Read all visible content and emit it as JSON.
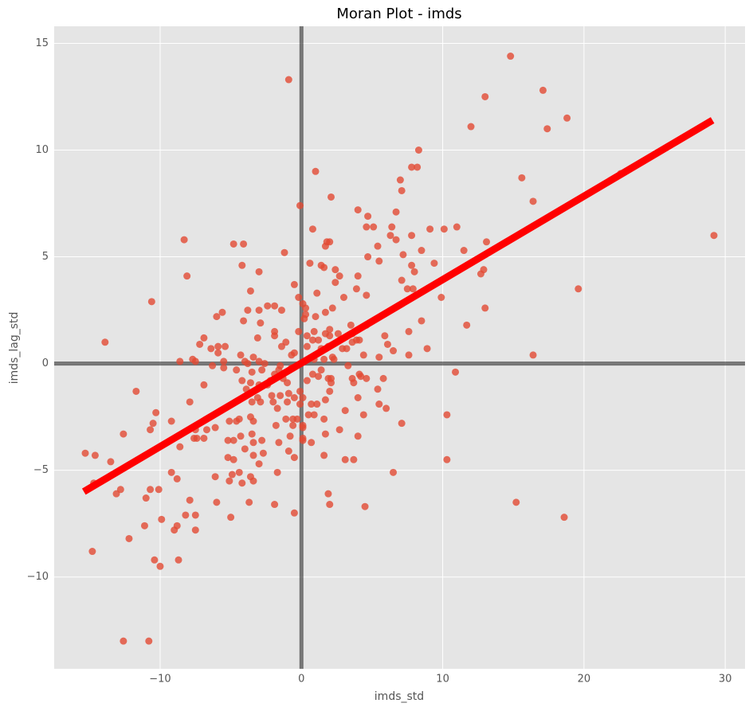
{
  "chart_data": {
    "type": "scatter",
    "title": "Moran Plot - imds",
    "x_label": "imds_std",
    "y_label": "imds_lag_std",
    "xlim": [
      -17.5,
      31.4
    ],
    "ylim": [
      -14.3,
      15.8
    ],
    "xticks": [
      {
        "value": -10,
        "label": "−10"
      },
      0,
      10,
      20,
      30
    ],
    "yticks": [
      {
        "value": -10,
        "label": "−10"
      },
      {
        "value": -5,
        "label": "−5"
      },
      0,
      5,
      10,
      15
    ],
    "grid": true,
    "hline": 0,
    "vline": 0,
    "series": [
      {
        "color": "#e24a33",
        "x": [
          14.8,
          -0.9,
          13.0,
          17.1,
          18.8,
          12.0,
          17.4,
          8.3,
          7.8,
          8.2,
          1.0,
          15.6,
          7.0,
          22.6,
          7.1,
          2.1,
          16.4,
          -0.1,
          4.0,
          4.7,
          6.7,
          29.2,
          11.0,
          6.4,
          4.6,
          5.1,
          0.8,
          9.1,
          10.1,
          7.8,
          6.3,
          -8.3,
          6.7,
          1.8,
          2.0,
          13.1,
          -4.8,
          -4.1,
          5.4,
          1.7,
          -1.2,
          11.5,
          8.5,
          7.2,
          4.7,
          0.6,
          5.5,
          9.4,
          1.4,
          7.8,
          -4.2,
          1.6,
          2.4,
          12.9,
          12.7,
          -3.0,
          8.0,
          -8.1,
          4.0,
          2.7,
          2.4,
          7.1,
          -0.5,
          7.5,
          7.9,
          19.6,
          1.1,
          -3.6,
          3.9,
          4.6,
          3.0,
          9.9,
          -0.2,
          0.1,
          -10.6,
          -2.4,
          -1.9,
          0.3,
          -3.8,
          -1.4,
          -3.0,
          2.2,
          13.0,
          -5.6,
          1.7,
          1.0,
          -6.0,
          0.3,
          0.2,
          -4.1,
          -2.9,
          8.5,
          3.5,
          11.7,
          4.6,
          2.0,
          0.9,
          -0.2,
          3.6,
          -1.9,
          7.6,
          2.6,
          1.7,
          5.9,
          0.4,
          -1.9,
          2.0,
          -13.9,
          -6.9,
          -3.1,
          0.8,
          1.2,
          4.1,
          3.9,
          3.6,
          8.9,
          -1.1,
          -7.2,
          -1.4,
          6.1,
          -5.9,
          -5.4,
          1.9,
          1.4,
          2.9,
          3.2,
          -6.4,
          0.4,
          -0.5,
          6.5,
          -5.9,
          -4.3,
          4.4,
          -3.4,
          -0.7,
          5.5,
          7.6,
          16.4,
          2.2,
          -7.7,
          -7.5,
          -8.6,
          -4.0,
          -3.0,
          0.9,
          1.6,
          2.3,
          -5.5,
          -3.8,
          -2.6,
          -1.5,
          3.3,
          -6.3,
          -5.5,
          -0.7,
          1.4,
          -4.6,
          -2.8,
          -1.6,
          10.9,
          -3.5,
          -1.9,
          0.8,
          1.2,
          4.1,
          4.2,
          -1.3,
          1.9,
          3.6,
          5.8,
          4.6,
          2.1,
          -4.2,
          -2.2,
          0.4,
          -3.6,
          -1.0,
          3.7,
          2.1,
          -3.0,
          -2.4,
          -11.7,
          -6.9,
          -3.9,
          5.4,
          -0.1,
          -0.9,
          -1.5,
          2.0,
          -2.1,
          -0.5,
          4.0,
          0.1,
          -3.1,
          1.7,
          -2.9,
          -1.0,
          -3.5,
          -2.0,
          -7.9,
          -0.1,
          0.7,
          1.1,
          5.5,
          6.0,
          3.1,
          -1.7,
          0.5,
          -10.3,
          0.9,
          4.4,
          10.3,
          -1.1,
          -0.6,
          -4.4,
          -3.6,
          1.6,
          -0.3,
          -10.5,
          -9.2,
          -5.1,
          -4.6,
          -3.4,
          0.1,
          -0.6,
          -1.8,
          0.1,
          7.1,
          -10.7,
          -7.5,
          -6.7,
          2.7,
          -6.1,
          -12.6,
          -3.5,
          -0.8,
          -4.3,
          4.0,
          1.7,
          -7.6,
          -7.4,
          -6.9,
          0.1,
          -5.2,
          -4.8,
          -2.8,
          0.1,
          0.7,
          -3.4,
          -1.6,
          -8.6,
          -4.0,
          -0.9,
          -2.7,
          -3.4,
          -15.3,
          -14.6,
          1.6,
          -5.2,
          -0.5,
          -4.8,
          3.1,
          3.7,
          10.3,
          -13.5,
          -3.0,
          -1.7,
          6.5,
          -9.2,
          -4.4,
          -4.9,
          -8.8,
          -6.1,
          -3.6,
          -5.1,
          -3.4,
          -14.7,
          -4.2,
          -10.7,
          -10.1,
          -12.8,
          -13.1,
          1.9,
          -11.0,
          -7.9,
          15.2,
          -6.0,
          -3.7,
          -1.9,
          2.0,
          4.5,
          -0.5,
          -8.2,
          -7.5,
          18.6,
          -5.0,
          -9.9,
          -11.1,
          -8.8,
          -7.5,
          -9.0,
          -12.2,
          -14.8,
          -10.4,
          -8.7,
          -10.0,
          -12.6,
          -10.8
        ],
        "values": [
          14.4,
          13.3,
          12.5,
          12.8,
          11.5,
          11.1,
          11.0,
          10.0,
          9.2,
          9.2,
          9.0,
          8.7,
          8.6,
          8.9,
          8.1,
          7.8,
          7.6,
          7.4,
          7.2,
          6.9,
          7.1,
          6.0,
          6.4,
          6.4,
          6.4,
          6.4,
          6.3,
          6.3,
          6.3,
          6.0,
          6.0,
          5.8,
          5.8,
          5.7,
          5.7,
          5.7,
          5.6,
          5.6,
          5.5,
          5.5,
          5.2,
          5.3,
          5.3,
          5.1,
          5.0,
          4.7,
          4.8,
          4.7,
          4.6,
          4.6,
          4.6,
          4.5,
          4.4,
          4.4,
          4.2,
          4.3,
          4.3,
          4.1,
          4.1,
          4.1,
          3.8,
          3.9,
          3.7,
          3.5,
          3.5,
          3.5,
          3.3,
          3.4,
          3.5,
          3.2,
          3.1,
          3.1,
          3.1,
          2.8,
          2.9,
          2.7,
          2.7,
          2.6,
          2.5,
          2.5,
          2.5,
          2.6,
          2.6,
          2.4,
          2.4,
          2.2,
          2.2,
          2.3,
          2.1,
          2.0,
          1.9,
          2.0,
          1.8,
          1.8,
          1.8,
          1.6,
          1.5,
          1.5,
          1.4,
          1.5,
          1.5,
          1.4,
          1.4,
          1.3,
          1.3,
          1.3,
          1.3,
          1.0,
          1.2,
          1.2,
          1.1,
          1.1,
          1.1,
          1.1,
          1.0,
          0.7,
          1.0,
          0.9,
          0.8,
          0.9,
          0.8,
          0.8,
          0.8,
          0.7,
          0.7,
          0.7,
          0.7,
          0.8,
          0.5,
          0.6,
          0.5,
          0.4,
          0.4,
          0.3,
          0.4,
          0.3,
          0.4,
          0.4,
          0.3,
          0.2,
          0.1,
          0.1,
          0.1,
          0.1,
          0.2,
          0.2,
          0.2,
          0.1,
          0.0,
          0.0,
          -0.1,
          -0.1,
          -0.1,
          -0.2,
          -0.2,
          -0.3,
          -0.3,
          -0.3,
          -0.3,
          -0.4,
          -0.4,
          -0.5,
          -0.5,
          -0.6,
          -0.5,
          -0.6,
          -0.7,
          -0.7,
          -0.7,
          -0.7,
          -0.7,
          -0.7,
          -0.8,
          -0.8,
          -0.8,
          -0.9,
          -0.9,
          -0.9,
          -0.9,
          -1.0,
          -1.0,
          -1.3,
          -1.0,
          -1.2,
          -1.2,
          -1.3,
          -1.4,
          -1.5,
          -1.3,
          -1.5,
          -1.6,
          -1.6,
          -1.6,
          -1.6,
          -1.7,
          -1.8,
          -1.8,
          -1.8,
          -1.8,
          -1.8,
          -1.9,
          -1.9,
          -1.9,
          -1.9,
          -2.1,
          -2.2,
          -2.1,
          -2.4,
          -2.3,
          -2.4,
          -2.4,
          -2.4,
          -2.6,
          -2.6,
          -2.6,
          -2.5,
          -2.6,
          -2.6,
          -2.8,
          -2.7,
          -2.7,
          -2.7,
          -2.7,
          -2.9,
          -2.9,
          -2.9,
          -3.0,
          -2.8,
          -3.1,
          -3.1,
          -3.1,
          -3.1,
          -3.0,
          -3.3,
          -3.3,
          -3.4,
          -3.4,
          -3.4,
          -3.3,
          -3.5,
          -3.5,
          -3.5,
          -3.5,
          -3.6,
          -3.6,
          -3.6,
          -3.6,
          -3.7,
          -3.7,
          -3.7,
          -3.9,
          -4.0,
          -4.1,
          -4.2,
          -4.3,
          -4.2,
          -4.3,
          -4.3,
          -4.4,
          -4.4,
          -4.5,
          -4.5,
          -4.5,
          -4.5,
          -4.6,
          -4.7,
          -5.1,
          -5.1,
          -5.1,
          -5.1,
          -5.2,
          -5.4,
          -5.3,
          -5.3,
          -5.5,
          -5.5,
          -5.6,
          -5.6,
          -5.9,
          -5.9,
          -5.9,
          -6.1,
          -6.1,
          -6.3,
          -6.4,
          -6.5,
          -6.5,
          -6.5,
          -6.6,
          -6.6,
          -6.7,
          -7.0,
          -7.1,
          -7.1,
          -7.2,
          -7.2,
          -7.3,
          -7.6,
          -7.6,
          -7.8,
          -7.8,
          -8.2,
          -8.8,
          -9.2,
          -9.2,
          -9.5,
          -13.0,
          -13.0
        ]
      }
    ],
    "fit": {
      "color": "#ff0000",
      "x": [
        -15.4,
        29.1
      ],
      "values": [
        -6.0,
        11.4
      ]
    }
  }
}
